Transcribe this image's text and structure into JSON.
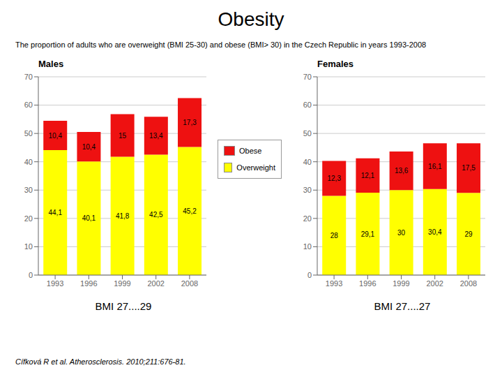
{
  "title": "Obesity",
  "subtitle": "The proportion of adults who are overweight (BMI 25-30) and obese (BMI> 30) in the Czech Republic in years 1993-2008",
  "annotations": [
    "Cífková R et al. Atherosclerosis. 2010;211:676-81."
  ],
  "chart_data": [
    {
      "type": "bar",
      "title": "Males",
      "categories": [
        "1993",
        "1996",
        "1999",
        "2002",
        "2008"
      ],
      "series": [
        {
          "name": "Overweight",
          "color": "#FFFF00",
          "values": [
            44.1,
            40.1,
            41.8,
            42.5,
            45.2
          ],
          "value_labels": [
            "44,1",
            "40,1",
            "41,8",
            "42,5",
            "45,2"
          ]
        },
        {
          "name": "Obese",
          "color": "#EE1111",
          "values": [
            10.4,
            10.4,
            15,
            13.4,
            17.3
          ],
          "value_labels": [
            "10,4",
            "10,4",
            "15",
            "13,4",
            "17,3"
          ]
        }
      ],
      "stacked": true,
      "data_labels": true,
      "grid": true,
      "ylim": [
        0,
        70
      ],
      "yticks": [
        0,
        10,
        20,
        30,
        40,
        50,
        60,
        70
      ],
      "annotations": [
        "BMI 27....29"
      ]
    },
    {
      "type": "bar",
      "title": "Females",
      "categories": [
        "1993",
        "1996",
        "1999",
        "2002",
        "2008"
      ],
      "series": [
        {
          "name": "Overweight",
          "color": "#FFFF00",
          "values": [
            28,
            29.1,
            30,
            30.4,
            29
          ],
          "value_labels": [
            "28",
            "29,1",
            "30",
            "30,4",
            "29"
          ]
        },
        {
          "name": "Obese",
          "color": "#EE1111",
          "values": [
            12.3,
            12.1,
            13.6,
            16.1,
            17.5
          ],
          "value_labels": [
            "12,3",
            "12,1",
            "13,6",
            "16,1",
            "17,5"
          ]
        }
      ],
      "stacked": true,
      "data_labels": true,
      "grid": true,
      "ylim": [
        0,
        70
      ],
      "yticks": [
        0,
        10,
        20,
        30,
        40,
        50,
        60,
        70
      ],
      "annotations": [
        "BMI 27....27"
      ]
    }
  ]
}
